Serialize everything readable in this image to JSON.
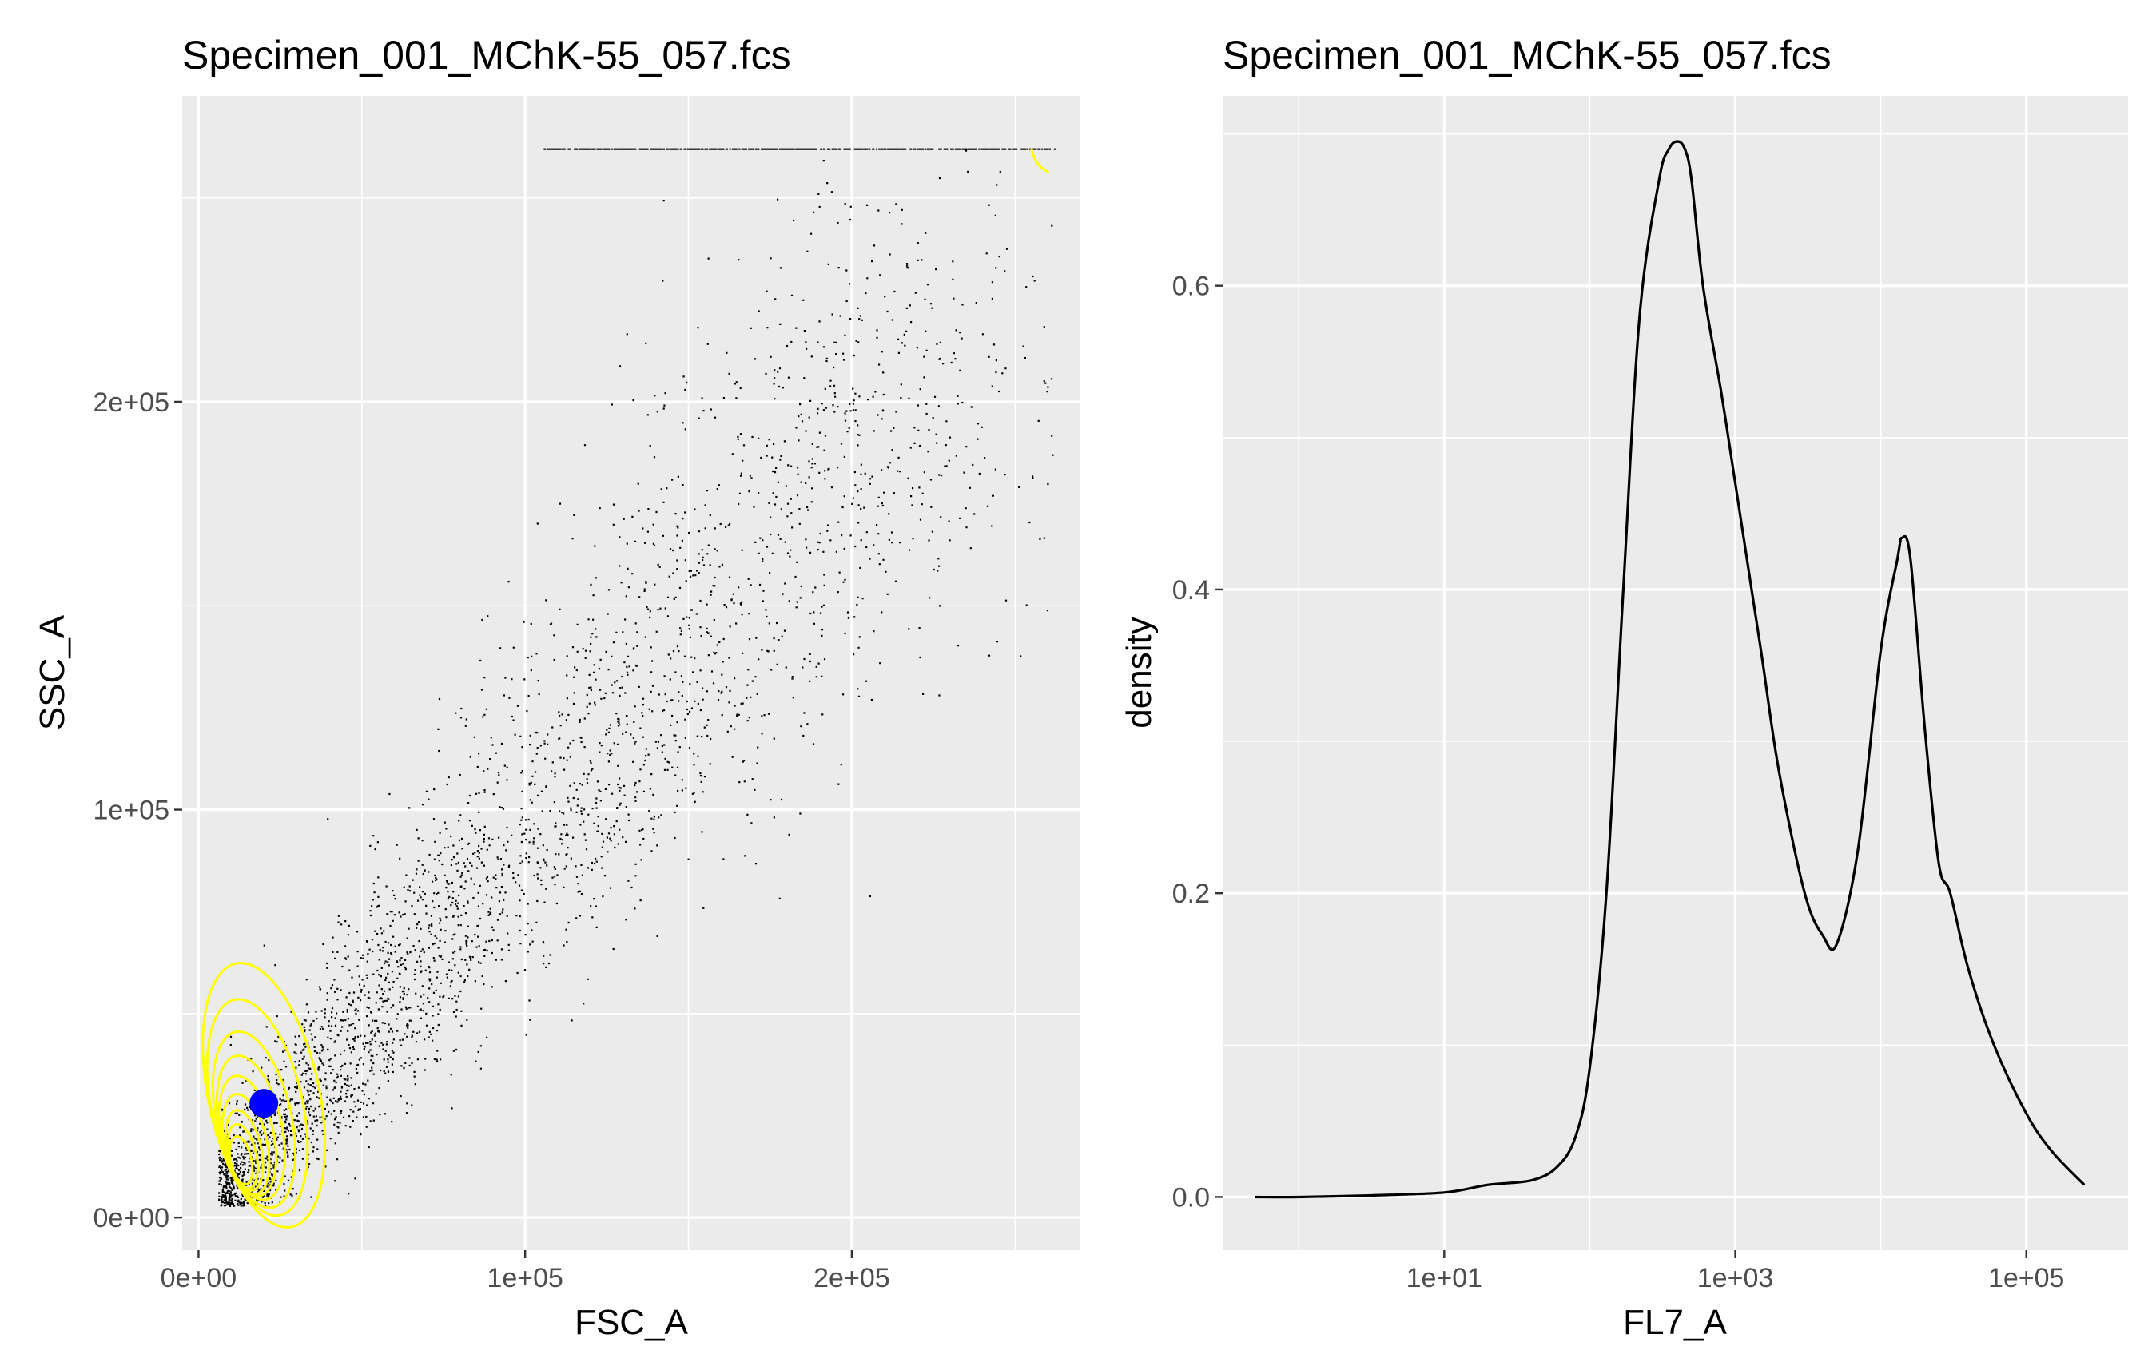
{
  "chart_data": [
    {
      "type": "scatter",
      "title": "Specimen_001_MChK-55_057.fcs",
      "xlabel": "FSC_A",
      "ylabel": "SSC_A",
      "xlim": [
        -5000,
        270000
      ],
      "ylim": [
        -8000,
        275000
      ],
      "x_ticks": [
        0,
        100000,
        200000
      ],
      "x_tick_labels": [
        "0e+00",
        "1e+05",
        "2e+05"
      ],
      "y_ticks": [
        0,
        100000,
        200000
      ],
      "y_tick_labels": [
        "0e+00",
        "1e+05",
        "2e+05"
      ],
      "grid": true,
      "point_color": "#000000",
      "contour_color": "#ffff00",
      "marker_color": "#0000ff",
      "point_cloud": {
        "n_points": 9000,
        "center": [
          42000,
          50000
        ],
        "saturation_ssc": 262143,
        "saturation_fsc": 262143
      },
      "density_peak": {
        "x": 20000,
        "y": 28000
      },
      "contours": [
        {
          "cx": 20000,
          "cy": 30000,
          "rx": 17000,
          "ry": 33000
        },
        {
          "cx": 18000,
          "cy": 27000,
          "rx": 14000,
          "ry": 27000
        },
        {
          "cx": 17000,
          "cy": 24000,
          "rx": 11500,
          "ry": 22000
        },
        {
          "cx": 16000,
          "cy": 22000,
          "rx": 9500,
          "ry": 18000
        },
        {
          "cx": 15000,
          "cy": 20000,
          "rx": 8000,
          "ry": 15000
        },
        {
          "cx": 14500,
          "cy": 18000,
          "rx": 6500,
          "ry": 12500
        },
        {
          "cx": 14000,
          "cy": 16500,
          "rx": 5200,
          "ry": 10000
        },
        {
          "cx": 13500,
          "cy": 15000,
          "rx": 4200,
          "ry": 8000
        },
        {
          "cx": 13000,
          "cy": 14000,
          "rx": 3200,
          "ry": 6000
        }
      ]
    },
    {
      "type": "line",
      "title": "Specimen_001_MChK-55_057.fcs",
      "xlabel": "FL7_A",
      "ylabel": "density",
      "x_scale": "log10",
      "xlim": [
        0.3,
        500000
      ],
      "ylim": [
        -0.035,
        0.725
      ],
      "x_ticks": [
        10,
        1000,
        100000
      ],
      "x_tick_labels": [
        "1e+01",
        "1e+03",
        "1e+05"
      ],
      "y_ticks": [
        0,
        0.2,
        0.4,
        0.6
      ],
      "y_tick_labels": [
        "0.0",
        "0.2",
        "0.4",
        "0.6"
      ],
      "grid": true,
      "line_color": "#000000",
      "series": [
        {
          "x": [
            0.5,
            1,
            3,
            10,
            20,
            40,
            60,
            80,
            100,
            130,
            170,
            220,
            300,
            350,
            400,
            450,
            500,
            600,
            800,
            1000,
            1500,
            2000,
            3000,
            4000,
            5000,
            7000,
            10000,
            13000,
            14000,
            16000,
            20000,
            25000,
            30000,
            40000,
            60000,
            100000,
            150000,
            250000
          ],
          "y": [
            0,
            0,
            0.001,
            0.003,
            0.008,
            0.011,
            0.02,
            0.04,
            0.085,
            0.2,
            0.4,
            0.58,
            0.67,
            0.69,
            0.695,
            0.69,
            0.67,
            0.6,
            0.53,
            0.47,
            0.36,
            0.28,
            0.2,
            0.172,
            0.167,
            0.23,
            0.36,
            0.42,
            0.434,
            0.42,
            0.31,
            0.22,
            0.2,
            0.15,
            0.1,
            0.055,
            0.03,
            0.008
          ]
        }
      ]
    }
  ]
}
